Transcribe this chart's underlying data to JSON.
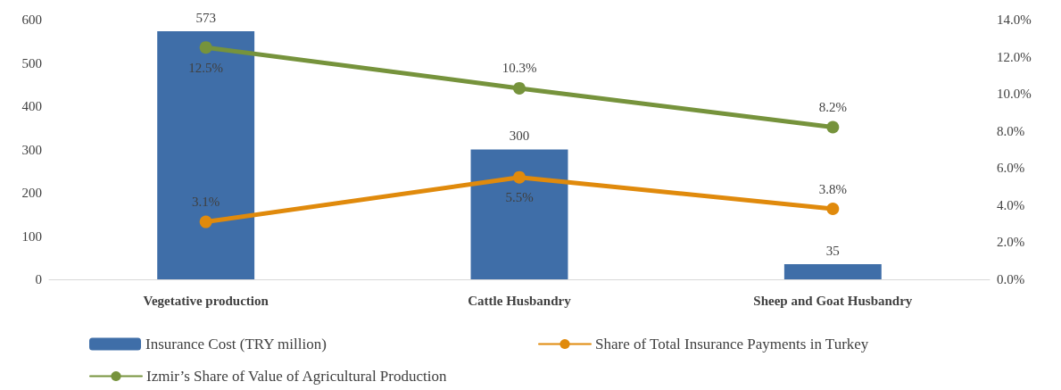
{
  "chart_data": {
    "type": "bar",
    "categories": [
      "Vegetative production",
      "Cattle Husbandry",
      "Sheep and Goat Husbandry"
    ],
    "series": [
      {
        "name": "Insurance Cost (TRY million)",
        "color": "#3f6ea8",
        "values": [
          573,
          300,
          35
        ],
        "value_labels": [
          "573",
          "300",
          "35"
        ]
      },
      {
        "name": "Share of Total Insurance Payments in Turkey",
        "type": "line",
        "axis": "y2",
        "color": "#e08a0c",
        "values": [
          3.1,
          5.5,
          3.8
        ],
        "value_labels": [
          "3.1%",
          "5.5%",
          "3.8%"
        ]
      },
      {
        "name": "Izmir’s Share of Value of Agricultural Production",
        "type": "line",
        "axis": "y2",
        "color": "#76933c",
        "values": [
          12.5,
          10.3,
          8.2
        ],
        "value_labels": [
          "12.5%",
          "10.3%",
          "8.2%"
        ]
      }
    ],
    "ylim": [
      0,
      600
    ],
    "yticks": [
      0,
      100,
      200,
      300,
      400,
      500,
      600
    ],
    "y2lim": [
      0,
      14
    ],
    "y2ticks": [
      {
        "value": 0,
        "label": "0.0%"
      },
      {
        "value": 2,
        "label": "2.0%"
      },
      {
        "value": 4,
        "label": "4.0%"
      },
      {
        "value": 6,
        "label": "6.0%"
      },
      {
        "value": 8,
        "label": "8.0%"
      },
      {
        "value": 10,
        "label": "10.0%"
      },
      {
        "value": 12,
        "label": "12.0%"
      },
      {
        "value": 14,
        "label": "14.0%"
      }
    ],
    "marker": "circle",
    "line_style": "solid",
    "grid": false,
    "legend": "bottom"
  }
}
